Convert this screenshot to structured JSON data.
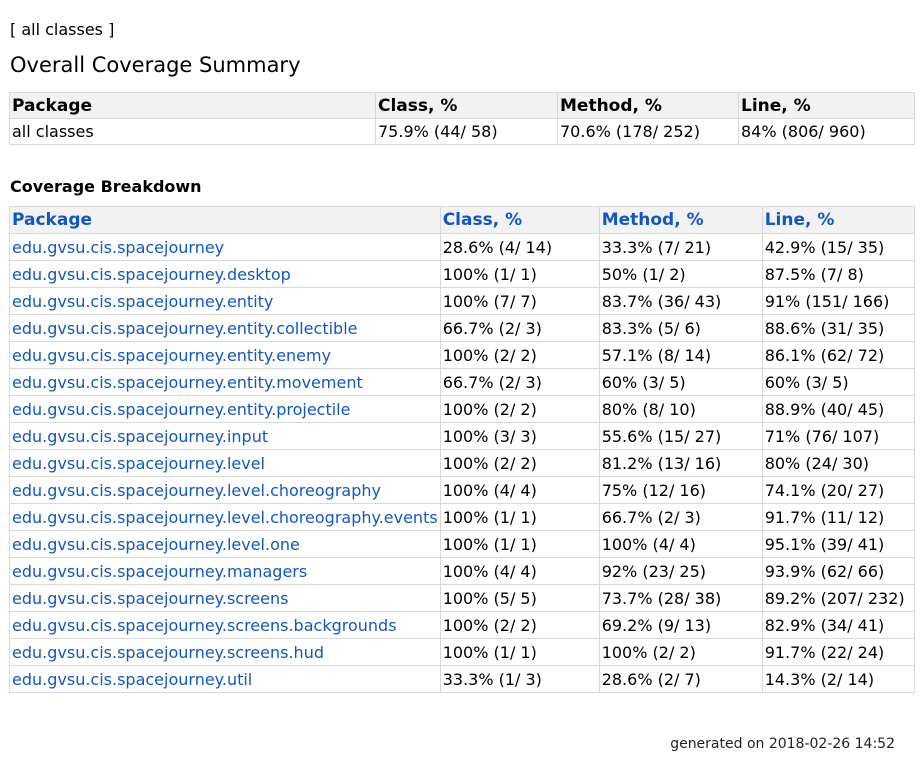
{
  "breadcrumb": {
    "open": "[ ",
    "link": "all classes",
    "close": " ]"
  },
  "overall": {
    "title": "Overall Coverage Summary",
    "headers": [
      "Package",
      "Class, %",
      "Method, %",
      "Line, %"
    ],
    "row": [
      "all classes",
      "75.9% (44/ 58)",
      "70.6% (178/ 252)",
      "84% (806/ 960)"
    ]
  },
  "breakdown": {
    "title": "Coverage Breakdown",
    "headers": [
      "Package",
      "Class, %",
      "Method, %",
      "Line, %"
    ],
    "rows": [
      [
        "edu.gvsu.cis.spacejourney",
        "28.6% (4/ 14)",
        "33.3% (7/ 21)",
        "42.9% (15/ 35)"
      ],
      [
        "edu.gvsu.cis.spacejourney.desktop",
        "100% (1/ 1)",
        "50% (1/ 2)",
        "87.5% (7/ 8)"
      ],
      [
        "edu.gvsu.cis.spacejourney.entity",
        "100% (7/ 7)",
        "83.7% (36/ 43)",
        "91% (151/ 166)"
      ],
      [
        "edu.gvsu.cis.spacejourney.entity.collectible",
        "66.7% (2/ 3)",
        "83.3% (5/ 6)",
        "88.6% (31/ 35)"
      ],
      [
        "edu.gvsu.cis.spacejourney.entity.enemy",
        "100% (2/ 2)",
        "57.1% (8/ 14)",
        "86.1% (62/ 72)"
      ],
      [
        "edu.gvsu.cis.spacejourney.entity.movement",
        "66.7% (2/ 3)",
        "60% (3/ 5)",
        "60% (3/ 5)"
      ],
      [
        "edu.gvsu.cis.spacejourney.entity.projectile",
        "100% (2/ 2)",
        "80% (8/ 10)",
        "88.9% (40/ 45)"
      ],
      [
        "edu.gvsu.cis.spacejourney.input",
        "100% (3/ 3)",
        "55.6% (15/ 27)",
        "71% (76/ 107)"
      ],
      [
        "edu.gvsu.cis.spacejourney.level",
        "100% (2/ 2)",
        "81.2% (13/ 16)",
        "80% (24/ 30)"
      ],
      [
        "edu.gvsu.cis.spacejourney.level.choreography",
        "100% (4/ 4)",
        "75% (12/ 16)",
        "74.1% (20/ 27)"
      ],
      [
        "edu.gvsu.cis.spacejourney.level.choreography.events",
        "100% (1/ 1)",
        "66.7% (2/ 3)",
        "91.7% (11/ 12)"
      ],
      [
        "edu.gvsu.cis.spacejourney.level.one",
        "100% (1/ 1)",
        "100% (4/ 4)",
        "95.1% (39/ 41)"
      ],
      [
        "edu.gvsu.cis.spacejourney.managers",
        "100% (4/ 4)",
        "92% (23/ 25)",
        "93.9% (62/ 66)"
      ],
      [
        "edu.gvsu.cis.spacejourney.screens",
        "100% (5/ 5)",
        "73.7% (28/ 38)",
        "89.2% (207/ 232)"
      ],
      [
        "edu.gvsu.cis.spacejourney.screens.backgrounds",
        "100% (2/ 2)",
        "69.2% (9/ 13)",
        "82.9% (34/ 41)"
      ],
      [
        "edu.gvsu.cis.spacejourney.screens.hud",
        "100% (1/ 1)",
        "100% (2/ 2)",
        "91.7% (22/ 24)"
      ],
      [
        "edu.gvsu.cis.spacejourney.util",
        "33.3% (1/ 3)",
        "28.6% (2/ 7)",
        "14.3% (2/ 14)"
      ]
    ]
  },
  "footer": {
    "generated": "generated on 2018-02-26 14:52"
  },
  "colors": {
    "link": "#1157c4",
    "border": "#d8d8d8"
  }
}
